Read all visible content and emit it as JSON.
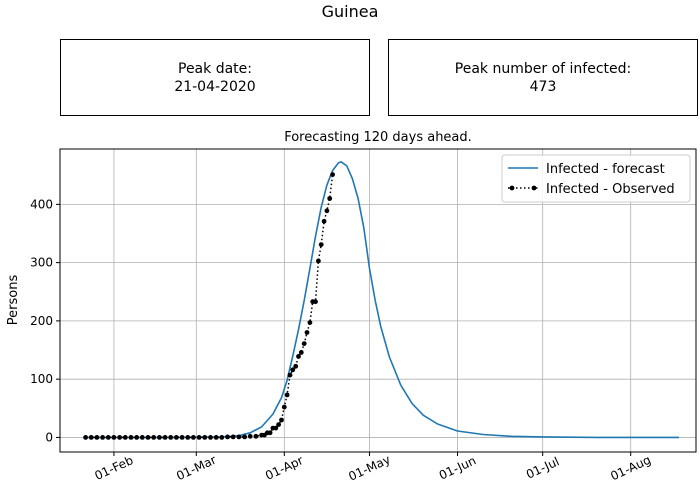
{
  "title": "Guinea",
  "info_boxes": {
    "peak_date": {
      "label": "Peak date:",
      "value": "21-04-2020"
    },
    "peak_infected": {
      "label": "Peak number of infected:",
      "value": "473"
    }
  },
  "colors": {
    "forecast": "#1f77b4",
    "observed": "#000000",
    "grid": "#b0b0b0"
  },
  "chart_data": {
    "type": "line",
    "title": "Forecasting 120 days ahead.",
    "xlabel": "",
    "ylabel": "Persons",
    "x_ticks": [
      "01-Feb",
      "01-Mar",
      "01-Apr",
      "01-May",
      "01-Jun",
      "01-Jul",
      "01-Aug"
    ],
    "y_ticks": [
      "0",
      "100",
      "200",
      "300",
      "400"
    ],
    "xlim": [
      "2020-01-13",
      "2020-08-24"
    ],
    "ylim": [
      -25,
      495
    ],
    "grid": true,
    "legend_position": "top-right",
    "series": [
      {
        "name": "Infected - forecast",
        "style": "line",
        "points": [
          [
            "2020-01-22",
            0
          ],
          [
            "2020-02-22",
            0
          ],
          [
            "2020-03-10",
            1
          ],
          [
            "2020-03-16",
            3
          ],
          [
            "2020-03-20",
            8
          ],
          [
            "2020-03-24",
            18
          ],
          [
            "2020-03-28",
            40
          ],
          [
            "2020-03-31",
            68
          ],
          [
            "2020-04-02",
            98
          ],
          [
            "2020-04-04",
            140
          ],
          [
            "2020-04-06",
            185
          ],
          [
            "2020-04-08",
            235
          ],
          [
            "2020-04-10",
            290
          ],
          [
            "2020-04-12",
            345
          ],
          [
            "2020-04-14",
            395
          ],
          [
            "2020-04-16",
            433
          ],
          [
            "2020-04-18",
            458
          ],
          [
            "2020-04-20",
            471
          ],
          [
            "2020-04-21",
            473
          ],
          [
            "2020-04-23",
            466
          ],
          [
            "2020-04-25",
            444
          ],
          [
            "2020-04-27",
            410
          ],
          [
            "2020-04-29",
            360
          ],
          [
            "2020-05-01",
            290
          ],
          [
            "2020-05-03",
            235
          ],
          [
            "2020-05-05",
            190
          ],
          [
            "2020-05-08",
            138
          ],
          [
            "2020-05-12",
            90
          ],
          [
            "2020-05-16",
            58
          ],
          [
            "2020-05-20",
            38
          ],
          [
            "2020-05-25",
            23
          ],
          [
            "2020-06-01",
            11
          ],
          [
            "2020-06-10",
            5
          ],
          [
            "2020-06-20",
            2
          ],
          [
            "2020-07-01",
            1
          ],
          [
            "2020-07-20",
            0
          ],
          [
            "2020-08-18",
            0
          ]
        ]
      },
      {
        "name": "Infected - Observed",
        "style": "dotted-markers",
        "points": [
          [
            "2020-01-22",
            0
          ],
          [
            "2020-01-24",
            0
          ],
          [
            "2020-01-26",
            0
          ],
          [
            "2020-01-28",
            0
          ],
          [
            "2020-01-30",
            0
          ],
          [
            "2020-02-01",
            0
          ],
          [
            "2020-02-03",
            0
          ],
          [
            "2020-02-05",
            0
          ],
          [
            "2020-02-07",
            0
          ],
          [
            "2020-02-09",
            0
          ],
          [
            "2020-02-11",
            0
          ],
          [
            "2020-02-13",
            0
          ],
          [
            "2020-02-15",
            0
          ],
          [
            "2020-02-17",
            0
          ],
          [
            "2020-02-19",
            0
          ],
          [
            "2020-02-21",
            0
          ],
          [
            "2020-02-23",
            0
          ],
          [
            "2020-02-25",
            0
          ],
          [
            "2020-02-27",
            0
          ],
          [
            "2020-02-29",
            0
          ],
          [
            "2020-03-02",
            0
          ],
          [
            "2020-03-04",
            0
          ],
          [
            "2020-03-06",
            0
          ],
          [
            "2020-03-08",
            0
          ],
          [
            "2020-03-10",
            0
          ],
          [
            "2020-03-12",
            1
          ],
          [
            "2020-03-14",
            1
          ],
          [
            "2020-03-16",
            1
          ],
          [
            "2020-03-18",
            1
          ],
          [
            "2020-03-20",
            2
          ],
          [
            "2020-03-22",
            2
          ],
          [
            "2020-03-24",
            4
          ],
          [
            "2020-03-25",
            4
          ],
          [
            "2020-03-26",
            8
          ],
          [
            "2020-03-27",
            8
          ],
          [
            "2020-03-28",
            16
          ],
          [
            "2020-03-29",
            16
          ],
          [
            "2020-03-30",
            22
          ],
          [
            "2020-03-31",
            30
          ],
          [
            "2020-04-01",
            52
          ],
          [
            "2020-04-02",
            73
          ],
          [
            "2020-04-03",
            107
          ],
          [
            "2020-04-04",
            116
          ],
          [
            "2020-04-05",
            122
          ],
          [
            "2020-04-06",
            139
          ],
          [
            "2020-04-07",
            146
          ],
          [
            "2020-04-08",
            161
          ],
          [
            "2020-04-09",
            180
          ],
          [
            "2020-04-10",
            197
          ],
          [
            "2020-04-11",
            233
          ],
          [
            "2020-04-12",
            233
          ],
          [
            "2020-04-13",
            303
          ],
          [
            "2020-04-14",
            331
          ],
          [
            "2020-04-15",
            371
          ],
          [
            "2020-04-16",
            389
          ],
          [
            "2020-04-17",
            410
          ],
          [
            "2020-04-18",
            451
          ]
        ]
      }
    ]
  }
}
